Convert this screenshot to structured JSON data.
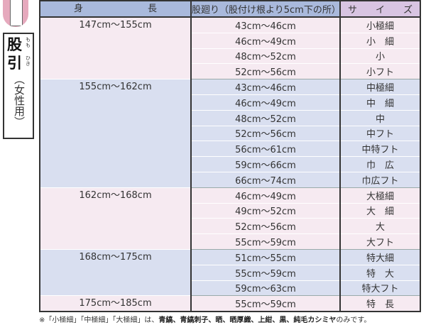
{
  "side": {
    "title": "股引",
    "ruby1": "もも",
    "ruby2": "ひき",
    "subtitle": "（女性用）"
  },
  "header": {
    "height": "身　　　　　　　長",
    "waist": "股廻り（股付け根より5cm下の所）",
    "size": "サ　　イ　　ズ"
  },
  "groups": [
    {
      "height": "147cm〜155cm",
      "rows": [
        [
          "43cm〜46cm",
          "小極細"
        ],
        [
          "46cm〜49cm",
          "小　細"
        ],
        [
          "48cm〜52cm",
          "小"
        ],
        [
          "52cm〜56cm",
          "小フト"
        ]
      ]
    },
    {
      "height": "155cm〜162cm",
      "rows": [
        [
          "43cm〜46cm",
          "中極細"
        ],
        [
          "46cm〜49cm",
          "中　細"
        ],
        [
          "48cm〜52cm",
          "中"
        ],
        [
          "52cm〜56cm",
          "中フト"
        ],
        [
          "56cm〜61cm",
          "中特フト"
        ],
        [
          "59cm〜66cm",
          "巾　広"
        ],
        [
          "66cm〜74cm",
          "巾広フト"
        ]
      ]
    },
    {
      "height": "162cm〜168cm",
      "rows": [
        [
          "46cm〜49cm",
          "大極細"
        ],
        [
          "49cm〜52cm",
          "大　細"
        ],
        [
          "52cm〜56cm",
          "大"
        ],
        [
          "55cm〜59cm",
          "大フト"
        ]
      ]
    },
    {
      "height": "168cm〜175cm",
      "rows": [
        [
          "51cm〜55cm",
          "特大細"
        ],
        [
          "55cm〜59cm",
          "特　大"
        ],
        [
          "59cm〜63cm",
          "特大フト"
        ]
      ]
    },
    {
      "height": "175cm〜185cm",
      "rows": [
        [
          "55cm〜59cm",
          "特　長"
        ]
      ]
    }
  ],
  "note": {
    "prefix": "※「小極細」「中極細」「大極細」は、",
    "bold": "青縞、青縞刺子、晒、晒厚織、上紺、黒、純毛カシミヤ",
    "suffix": "のみです。"
  },
  "colors": {
    "pink": "#f6eaf1",
    "blue": "#d9dff0",
    "header": "#a9b9dc",
    "header_size": "#d8c4e2"
  }
}
